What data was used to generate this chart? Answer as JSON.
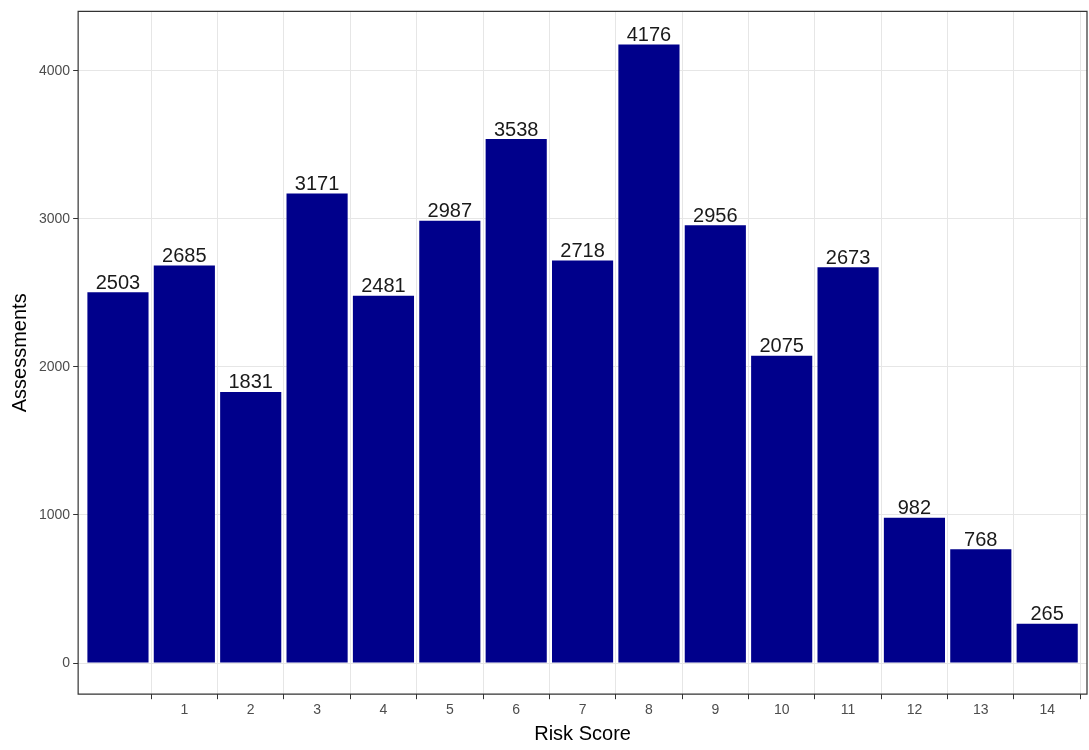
{
  "chart_data": {
    "type": "bar",
    "xlabel": "Risk Score",
    "ylabel": "Assessments",
    "x": [
      0,
      1,
      2,
      3,
      4,
      5,
      6,
      7,
      8,
      9,
      10,
      11,
      12,
      13,
      14
    ],
    "values": [
      2503,
      2685,
      1831,
      3171,
      2481,
      2987,
      3538,
      2718,
      4176,
      2956,
      2075,
      2673,
      982,
      768,
      265
    ],
    "color": "#00008b",
    "xlim": [
      -0.6,
      14.6
    ],
    "xticks": [
      1,
      2,
      3,
      4,
      5,
      6,
      7,
      8,
      9,
      10,
      11,
      12,
      13,
      14
    ],
    "ylim": [
      -210,
      4400
    ],
    "yticks": [
      0,
      1000,
      2000,
      3000,
      4000
    ],
    "grid": true,
    "legend": false,
    "data_labels": true
  }
}
